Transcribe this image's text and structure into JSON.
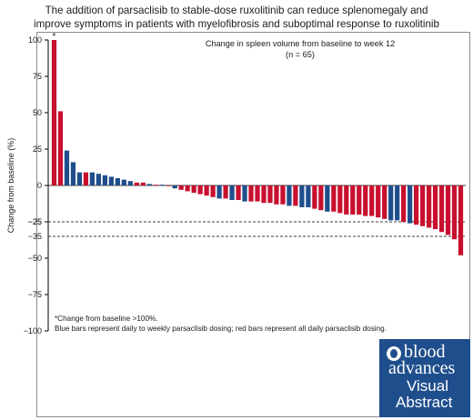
{
  "title_lines": [
    "The addition of parsaclisib to stable-dose ruxolitinib can reduce splenomegaly and",
    "improve symptoms in patients with myelofibrosis and suboptimal response to ruxolitinib"
  ],
  "chart_data": {
    "type": "bar",
    "title": "Change in spleen volume from baseline to week 12",
    "subtitle": "(n = 65)",
    "ylabel": "Change from baseline (%)",
    "ylim": [
      -100,
      100
    ],
    "yticks": [
      "100",
      "75",
      "50",
      "25",
      "0",
      "−25",
      "−50",
      "−75",
      "−100"
    ],
    "ytick_values": [
      100,
      75,
      50,
      25,
      0,
      -25,
      -50,
      -75,
      -100
    ],
    "extra_ticks": [
      "−25",
      "−35"
    ],
    "extra_tick_values": [
      -25,
      -35
    ],
    "reference_lines": [
      -25,
      -35
    ],
    "annotation": "*",
    "colors": {
      "red": "#c8102e",
      "blue": "#1f4e8c"
    },
    "series": [
      {
        "values": [
          100,
          51,
          24,
          16,
          9,
          9,
          9,
          8,
          7,
          6,
          5,
          4,
          3,
          2,
          2,
          1,
          0.5,
          0.5,
          -0.5,
          -2,
          -3,
          -4,
          -5,
          -6,
          -7,
          -8,
          -9,
          -9,
          -10,
          -10,
          -11,
          -11,
          -11,
          -12,
          -12,
          -13,
          -13,
          -14,
          -14,
          -15,
          -15,
          -16,
          -17,
          -18,
          -18,
          -19,
          -20,
          -20,
          -20,
          -21,
          -21,
          -22,
          -23,
          -24,
          -24,
          -25,
          -26,
          -27,
          -28,
          -29,
          -30,
          -32,
          -34,
          -37,
          -48
        ],
        "colors": [
          "red",
          "red",
          "blue",
          "blue",
          "blue",
          "red",
          "blue",
          "blue",
          "blue",
          "blue",
          "blue",
          "blue",
          "blue",
          "red",
          "red",
          "blue",
          "red",
          "blue",
          "red",
          "blue",
          "red",
          "red",
          "red",
          "red",
          "red",
          "red",
          "blue",
          "red",
          "blue",
          "red",
          "blue",
          "red",
          "red",
          "red",
          "red",
          "red",
          "red",
          "blue",
          "red",
          "blue",
          "blue",
          "red",
          "red",
          "blue",
          "red",
          "red",
          "red",
          "red",
          "red",
          "red",
          "red",
          "red",
          "red",
          "blue",
          "blue",
          "red",
          "blue",
          "red",
          "red",
          "red",
          "red",
          "red",
          "red",
          "red",
          "red"
        ]
      }
    ]
  },
  "footnotes": [
    "*Change from baseline >100%.",
    "Blue bars represent daily to weekly parsaclisib dosing; red bars represent all daily parsaclisib dosing."
  ],
  "logo": {
    "line1": "blood",
    "line2": "advances",
    "line3": "Visual",
    "line4": "Abstract"
  }
}
